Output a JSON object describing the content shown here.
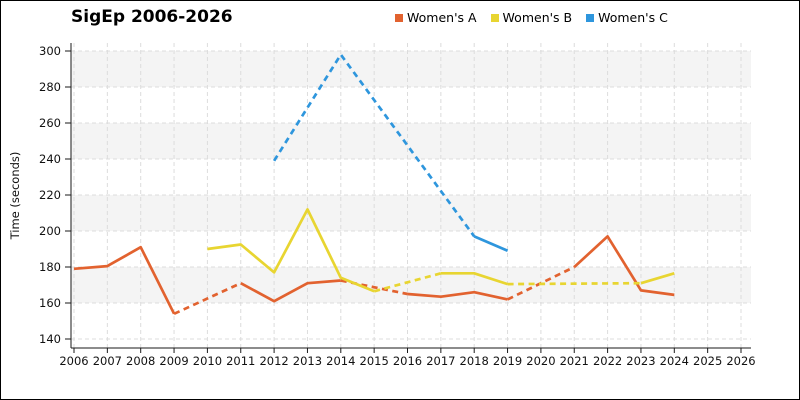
{
  "title": "SigEp 2006-2026",
  "legend": [
    {
      "label": "Women's A",
      "color": "#e2622f"
    },
    {
      "label": "Women's B",
      "color": "#e8d531"
    },
    {
      "label": "Women's C",
      "color": "#2e96dd"
    }
  ],
  "colors": {
    "band": "#f4f4f4",
    "grid": "#dcdcdc",
    "axis": "#1a1a1a",
    "text": "#111111"
  },
  "chart_data": {
    "type": "line",
    "title": "SigEp 2006-2026",
    "xlabel": "",
    "ylabel": "Time (seconds)",
    "x_ticks": [
      2006,
      2007,
      2008,
      2009,
      2010,
      2011,
      2012,
      2013,
      2014,
      2015,
      2016,
      2017,
      2018,
      2019,
      2020,
      2021,
      2022,
      2023,
      2024,
      2025,
      2026
    ],
    "y_ticks": [
      140,
      160,
      180,
      200,
      220,
      240,
      260,
      280,
      300
    ],
    "xlim": [
      2006,
      2026
    ],
    "ylim": [
      140,
      300
    ],
    "grid": "dashed",
    "legend_position": "top-center",
    "background_bands": [
      [
        160,
        180
      ],
      [
        200,
        220
      ],
      [
        240,
        260
      ],
      [
        280,
        300
      ]
    ],
    "note_dashed": "dashed segments bridge years with missing data",
    "series": [
      {
        "name": "Women's A",
        "color": "#e2622f",
        "segments": [
          {
            "style": "solid",
            "points": [
              [
                2006,
                179
              ],
              [
                2007,
                180.5
              ],
              [
                2008,
                191
              ],
              [
                2009,
                154
              ]
            ]
          },
          {
            "style": "dashed",
            "points": [
              [
                2009,
                154
              ],
              [
                2011,
                171
              ]
            ]
          },
          {
            "style": "solid",
            "points": [
              [
                2011,
                171
              ],
              [
                2012,
                161
              ],
              [
                2013,
                171
              ],
              [
                2014,
                172.5
              ]
            ]
          },
          {
            "style": "dashed",
            "points": [
              [
                2014,
                172.5
              ],
              [
                2016,
                165
              ]
            ]
          },
          {
            "style": "solid",
            "points": [
              [
                2016,
                165
              ],
              [
                2017,
                163.5
              ],
              [
                2018,
                166
              ],
              [
                2019,
                162
              ]
            ]
          },
          {
            "style": "dashed",
            "points": [
              [
                2019,
                162
              ],
              [
                2021,
                180
              ]
            ]
          },
          {
            "style": "solid",
            "points": [
              [
                2021,
                180
              ],
              [
                2022,
                197
              ],
              [
                2023,
                167
              ],
              [
                2024,
                164.5
              ]
            ]
          }
        ]
      },
      {
        "name": "Women's B",
        "color": "#e8d531",
        "segments": [
          {
            "style": "solid",
            "points": [
              [
                2010,
                190
              ],
              [
                2011,
                192.5
              ],
              [
                2012,
                177
              ],
              [
                2013,
                212
              ],
              [
                2014,
                174
              ],
              [
                2015,
                166.5
              ]
            ]
          },
          {
            "style": "dashed",
            "points": [
              [
                2015,
                166.5
              ],
              [
                2017,
                176.5
              ]
            ]
          },
          {
            "style": "solid",
            "points": [
              [
                2017,
                176.5
              ],
              [
                2018,
                176.5
              ],
              [
                2019,
                170.5
              ]
            ]
          },
          {
            "style": "dashed",
            "points": [
              [
                2019,
                170.5
              ],
              [
                2023,
                171
              ]
            ]
          },
          {
            "style": "solid",
            "points": [
              [
                2023,
                171
              ],
              [
                2024,
                176.5
              ]
            ]
          }
        ]
      },
      {
        "name": "Women's C",
        "color": "#2e96dd",
        "segments": [
          {
            "style": "dashed",
            "points": [
              [
                2012,
                239
              ],
              [
                2014,
                298
              ],
              [
                2018,
                197
              ]
            ]
          },
          {
            "style": "solid",
            "points": [
              [
                2018,
                197
              ],
              [
                2019,
                189
              ]
            ]
          }
        ]
      }
    ]
  }
}
